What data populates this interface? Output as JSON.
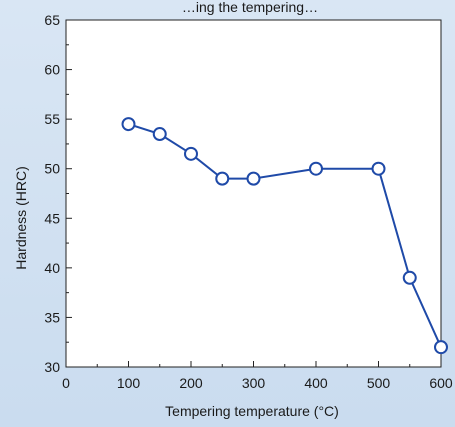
{
  "chart_data": {
    "type": "line",
    "title": "…ing the tempering…",
    "xlabel": "Tempering temperature (°C)",
    "ylabel": "Hardness (HRC)",
    "xlim": [
      0,
      600
    ],
    "ylim": [
      30,
      65
    ],
    "x_ticks": [
      0,
      100,
      200,
      300,
      400,
      500,
      600
    ],
    "y_ticks": [
      30,
      35,
      40,
      45,
      50,
      55,
      60,
      65
    ],
    "grid": false,
    "series": [
      {
        "x": [
          100,
          150,
          200,
          250,
          300,
          400,
          500,
          550,
          600
        ],
        "y": [
          54.5,
          53.5,
          51.5,
          49,
          49,
          50,
          50,
          39,
          32
        ]
      }
    ],
    "colors": {
      "background": "#cfe0f2",
      "plot_area": "#ffffff",
      "line": "#1f4aa8",
      "marker_fill": "#ffffff"
    }
  }
}
